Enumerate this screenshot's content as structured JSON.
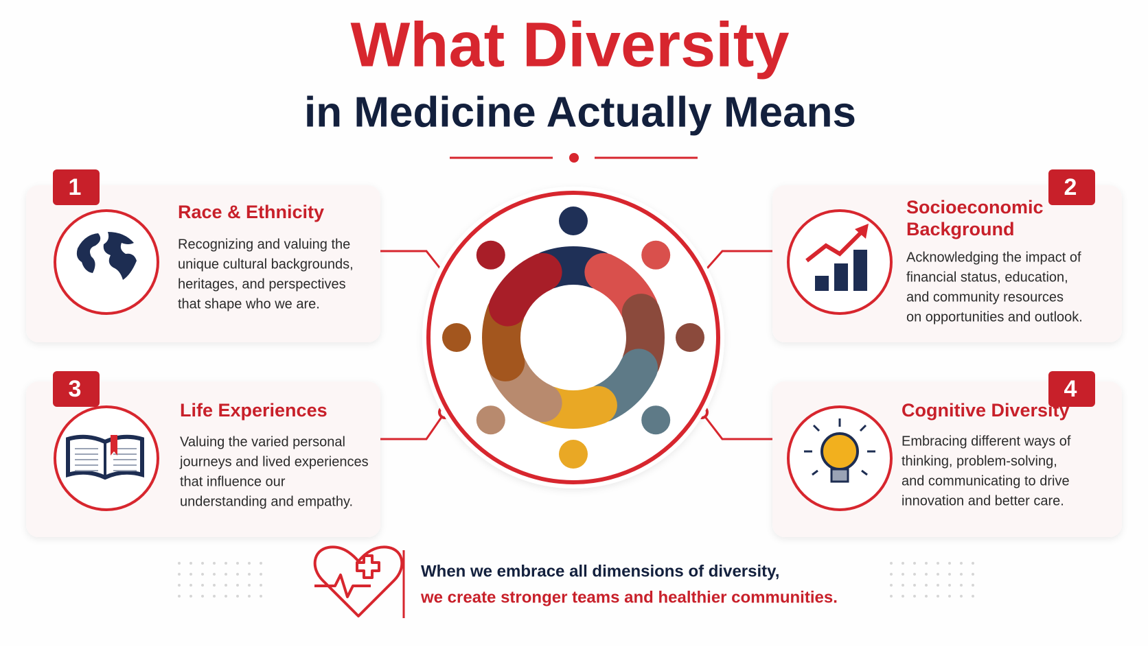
{
  "header": {
    "title_line1": "What Diversity",
    "title_line2": "in Medicine Actually Means"
  },
  "cards": [
    {
      "number": "1",
      "title_lines": [
        "Race & Ethnicity"
      ],
      "description_lines": [
        "Recognizing and valuing the",
        "unique cultural backgrounds,",
        "heritages, and perspectives",
        "that shape who we are."
      ]
    },
    {
      "number": "2",
      "title_lines": [
        "Socioeconomic",
        "Background"
      ],
      "description_lines": [
        "Acknowledging the impact of",
        "financial status, education,",
        "and community resources",
        "on opportunities and outlook."
      ]
    },
    {
      "number": "3",
      "title_lines": [
        "Life Experiences"
      ],
      "description_lines": [
        "Valuing the varied personal",
        "journeys and lived experiences",
        "that influence our",
        "understanding and empathy."
      ]
    },
    {
      "number": "4",
      "title_lines": [
        "Cognitive Diversity"
      ],
      "description_lines": [
        "Embracing different ways of",
        "thinking, problem-solving,",
        "and communicating to drive",
        "innovation and better care."
      ]
    }
  ],
  "footer": {
    "line1": "When we embrace all dimensions of diversity,",
    "line2": "we create stronger teams and healthier communities."
  }
}
